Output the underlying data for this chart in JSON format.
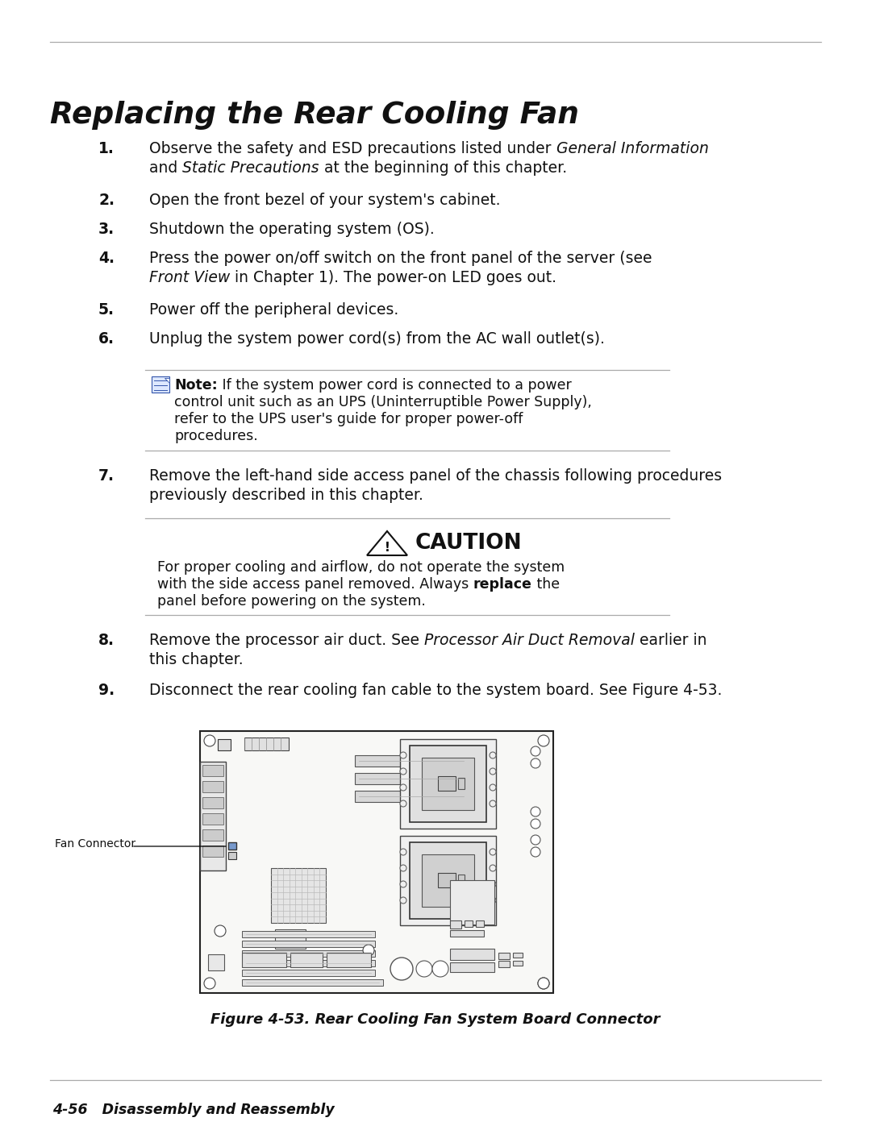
{
  "bg_color": "#ffffff",
  "text_color": "#111111",
  "title": "Replacing the Rear Cooling Fan",
  "footer_text": "4-56   Disassembly and Reassembly",
  "figure_caption": "Figure 4-53. Rear Cooling Fan System Board Connector",
  "fan_connector_label": "Fan Connector",
  "note_bold": "Note:",
  "caution_title": "CAUTION"
}
